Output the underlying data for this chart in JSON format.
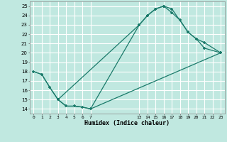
{
  "background_color": "#c0e8e0",
  "grid_color": "#ffffff",
  "line_color": "#1a7a6a",
  "xlabel": "Humidex (Indice chaleur)",
  "xlim": [
    -0.5,
    23.5
  ],
  "ylim": [
    13.5,
    25.5
  ],
  "xticks_left": [
    0,
    1,
    2,
    3,
    4,
    5,
    6,
    7
  ],
  "xticks_right": [
    13,
    14,
    15,
    16,
    17,
    18,
    19,
    20,
    21,
    22,
    23
  ],
  "yticks": [
    14,
    15,
    16,
    17,
    18,
    19,
    20,
    21,
    22,
    23,
    24,
    25
  ],
  "line1_x": [
    0,
    1,
    2,
    3,
    13,
    14,
    15,
    16,
    17,
    19,
    20,
    21,
    23
  ],
  "line1_y": [
    18,
    17.7,
    16.3,
    15.0,
    23,
    24,
    24.7,
    25,
    24.7,
    22.2,
    21.5,
    20.5,
    20
  ],
  "line2_x": [
    3,
    4,
    5,
    6,
    7,
    13,
    14,
    15,
    16,
    17,
    18,
    19,
    20,
    21,
    23
  ],
  "line2_y": [
    15.0,
    14.3,
    14.3,
    14.2,
    14.0,
    23,
    24,
    24.7,
    25,
    24.3,
    23.5,
    22.2,
    21.5,
    21.1,
    20
  ],
  "line3_x": [
    0,
    1,
    2,
    3,
    4,
    5,
    6,
    7,
    23
  ],
  "line3_y": [
    18,
    17.7,
    16.3,
    15.0,
    14.3,
    14.3,
    14.2,
    14.0,
    20
  ]
}
